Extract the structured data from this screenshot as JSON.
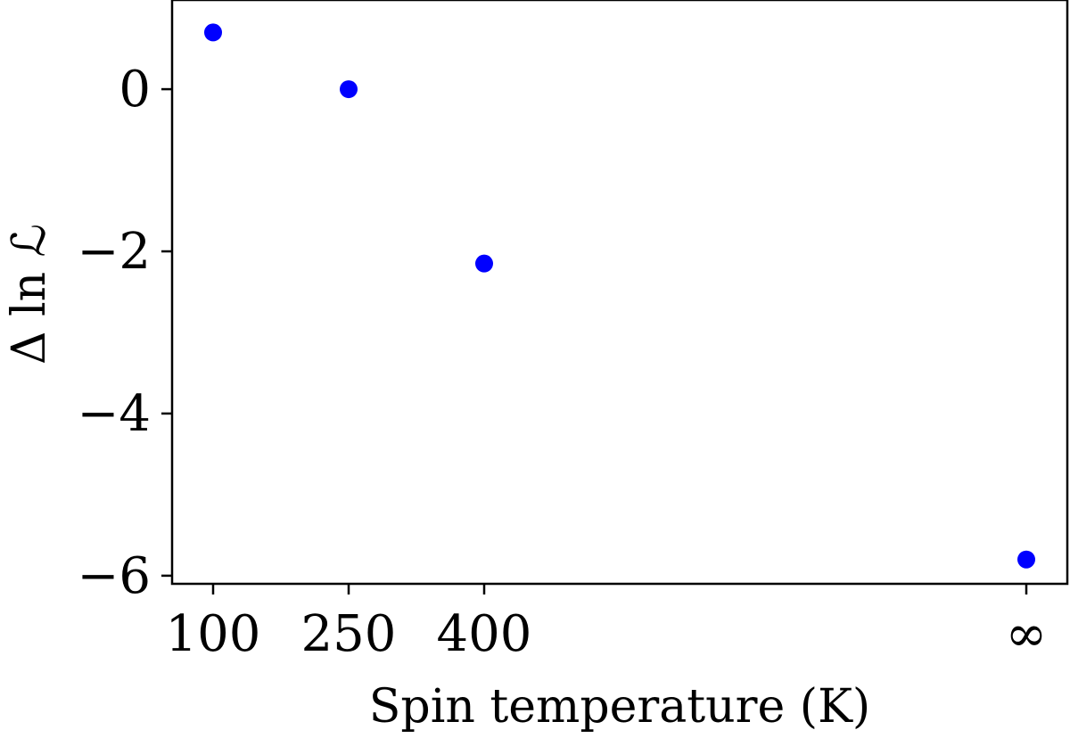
{
  "chart_data": {
    "type": "scatter",
    "xlabel": "Spin temperature (K)",
    "ylabel": "Δ ln ℒ",
    "x_ticks": [
      "100",
      "250",
      "400",
      "∞"
    ],
    "y_ticks": [
      0,
      -2,
      -4,
      -6
    ],
    "y_tick_labels": [
      "0",
      "−2",
      "−4",
      "−6"
    ],
    "ylim": [
      -6.1,
      1.1
    ],
    "grid": false,
    "marker_color": "#0000ff",
    "series": [
      {
        "x": [
          "100",
          "250",
          "400",
          "∞"
        ],
        "y": [
          0.7,
          0.0,
          -2.15,
          -5.8
        ]
      }
    ]
  }
}
